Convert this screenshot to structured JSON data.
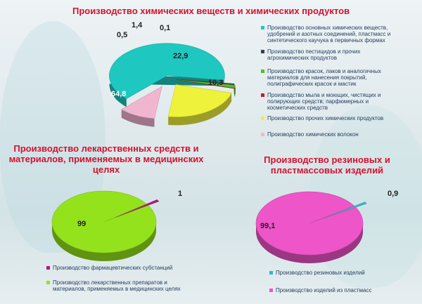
{
  "chart_data": [
    {
      "type": "pie",
      "title": "Производство химических веществ и химических продуктов",
      "slices": [
        {
          "name": "Производство основных химических веществ, удобрений и азотных соединений, пластмасс и синтетического каучука в первичных формах",
          "value": 64.8,
          "label": "64,8",
          "color": "#1ec8c0"
        },
        {
          "name": "Производство пестицидов и прочих агрохимических продуктов",
          "value": 0.5,
          "label": "0,5",
          "color": "#3b3f52"
        },
        {
          "name": "Производство красок, лаков и аналогичных материалов для нанесения покрытий, полиграфических красок и мастик",
          "value": 1.4,
          "label": "1,4",
          "color": "#4fc21e"
        },
        {
          "name": "Производство мыла и моющих, чистящих и полирующих средств; парфюмерных и косметических средств",
          "value": 0.1,
          "label": "0,1",
          "color": "#d01830"
        },
        {
          "name": "Производство прочих химических продуктов",
          "value": 22.9,
          "label": "22,9",
          "color": "#eef23a"
        },
        {
          "name": "Производство химических волокон",
          "value": 10.3,
          "label": "10,3",
          "color": "#f1b6cf"
        }
      ]
    },
    {
      "type": "pie",
      "title": "Производство лекарственных средств и материалов, применяемых в медицинских целях",
      "slices": [
        {
          "name": "Производство фармацевтических субстанций",
          "value": 1,
          "label": "1",
          "color": "#b01a7a"
        },
        {
          "name": "Производство лекарственных препаратов и материалов, применяемых в медицинских целях",
          "value": 99,
          "label": "99",
          "color": "#94e21c"
        }
      ]
    },
    {
      "type": "pie",
      "title": "Производство резиновых и пластмассовых изделий",
      "slices": [
        {
          "name": "Производство резиновых изделий",
          "value": 0.9,
          "label": "0,9",
          "color": "#34b6c9"
        },
        {
          "name": "Производство изделий из пластмасс",
          "value": 99.1,
          "label": "99,1",
          "color": "#ee55c8"
        }
      ]
    }
  ]
}
